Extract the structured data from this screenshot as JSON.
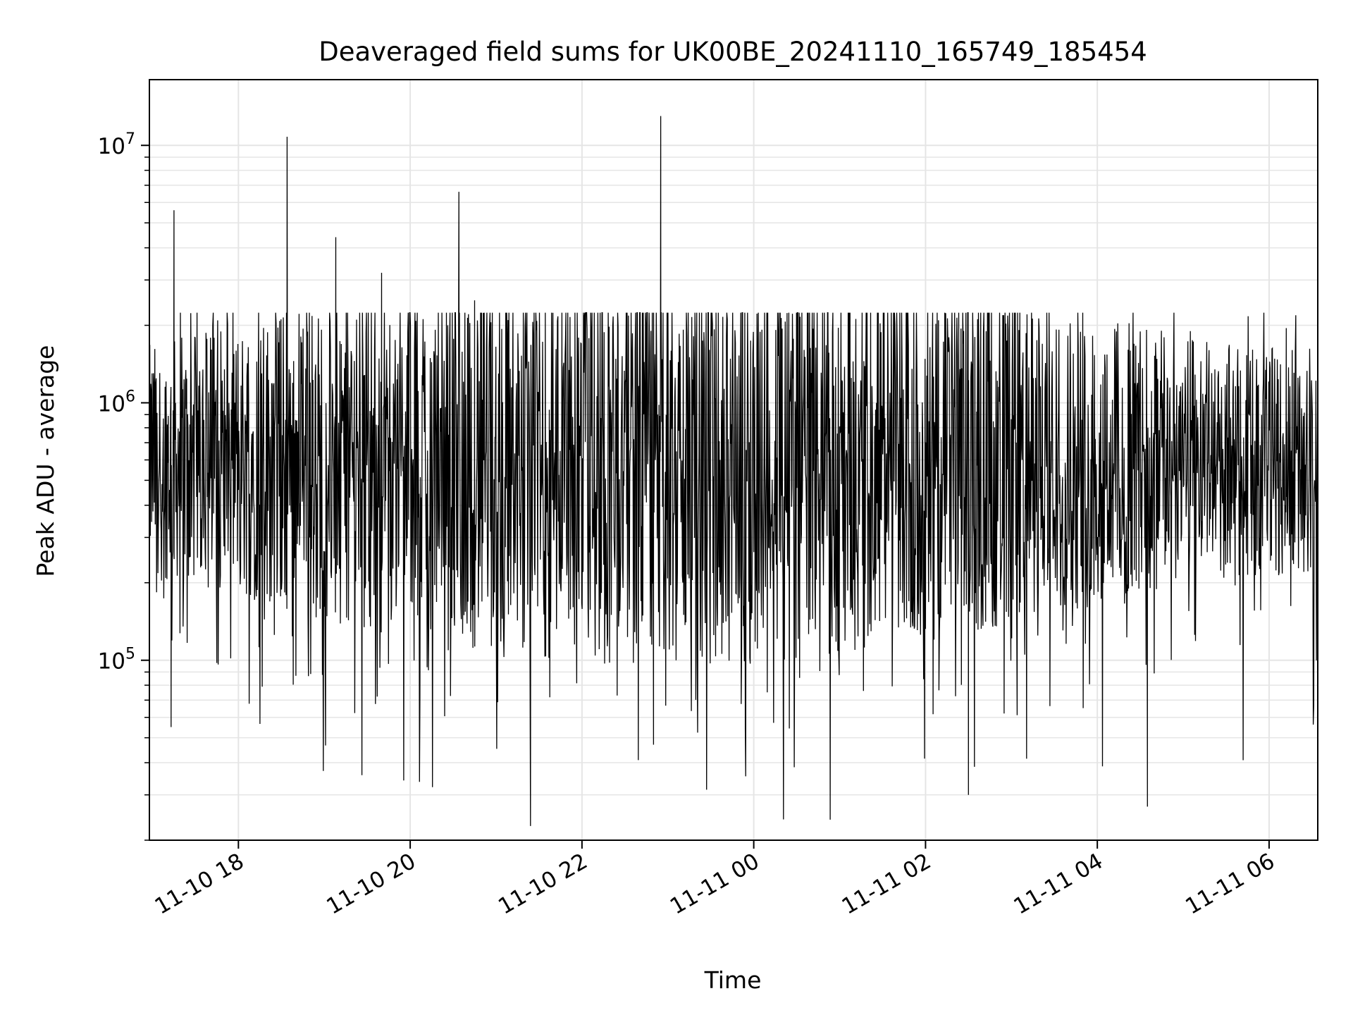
{
  "chart_data": {
    "type": "line",
    "title": "Deaveraged field sums for UK00BE_20241110_165749_185454",
    "xlabel": "Time",
    "ylabel": "Peak ADU - average",
    "x_axis": {
      "kind": "datetime",
      "start": "2024-11-10 16:57:49",
      "end": "2024-11-11 06:34:00",
      "ticks": [
        {
          "value": "2024-11-10 18:00",
          "label": "11-10 18"
        },
        {
          "value": "2024-11-10 20:00",
          "label": "11-10 20"
        },
        {
          "value": "2024-11-10 22:00",
          "label": "11-10 22"
        },
        {
          "value": "2024-11-11 00:00",
          "label": "11-11 00"
        },
        {
          "value": "2024-11-11 02:00",
          "label": "11-11 02"
        },
        {
          "value": "2024-11-11 04:00",
          "label": "11-11 04"
        },
        {
          "value": "2024-11-11 06:00",
          "label": "11-11 06"
        }
      ]
    },
    "y_axis": {
      "scale": "log",
      "ylim": [
        20000,
        18000000
      ],
      "ticks": [
        {
          "value": 100000,
          "label_base": "10",
          "label_exp": "5"
        },
        {
          "value": 1000000,
          "label_base": "10",
          "label_exp": "6"
        },
        {
          "value": 10000000,
          "label_base": "10",
          "label_exp": "7"
        }
      ]
    },
    "grid": true,
    "legend": "none",
    "line_color": "#000000",
    "grid_color": "#e5e5e5",
    "series": [
      {
        "baseline_median": 600000,
        "spikes": [
          {
            "x": "2024-11-10 17:15",
            "y": 5600000
          },
          {
            "x": "2024-11-10 17:13",
            "y": 55000
          },
          {
            "x": "2024-11-10 18:34",
            "y": 10800000
          },
          {
            "x": "2024-11-10 19:08",
            "y": 4400000
          },
          {
            "x": "2024-11-10 19:40",
            "y": 3200000
          },
          {
            "x": "2024-11-10 20:34",
            "y": 6600000
          },
          {
            "x": "2024-11-10 20:45",
            "y": 2500000
          },
          {
            "x": "2024-11-10 22:55",
            "y": 13000000
          },
          {
            "x": "2024-11-10 22:50",
            "y": 47000
          },
          {
            "x": "2024-11-11 02:30",
            "y": 30000
          },
          {
            "x": "2024-11-11 04:35",
            "y": 27000
          },
          {
            "x": "2024-11-11 05:05",
            "y": 1900000
          },
          {
            "x": "2024-11-11 06:12",
            "y": 1950000
          }
        ]
      }
    ]
  }
}
